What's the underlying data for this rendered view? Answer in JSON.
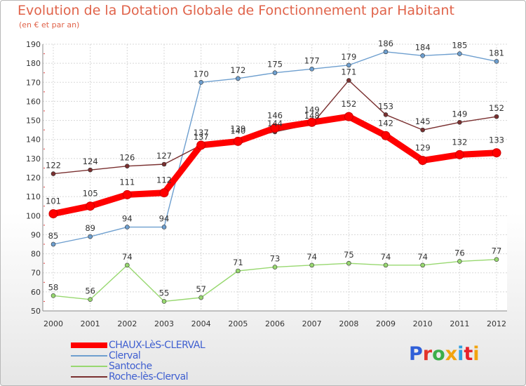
{
  "header": {
    "title": "Evolution de la Dotation Globale de Fonctionnement par Habitant",
    "subtitle": "(en € et par an)"
  },
  "logo": {
    "text": "Proxiti",
    "colors": [
      "#2f5fd8",
      "#e2352b",
      "#3cae49",
      "#f2a40f",
      "#2f9fe0",
      "#e6212b",
      "#f2a40f"
    ]
  },
  "chart_data": {
    "type": "line",
    "x": [
      "2000",
      "2001",
      "2002",
      "2003",
      "2004",
      "2005",
      "2006",
      "2007",
      "2008",
      "2009",
      "2010",
      "2011",
      "2012"
    ],
    "ylim": [
      50,
      190
    ],
    "yticks": [
      50,
      60,
      70,
      80,
      90,
      100,
      110,
      120,
      130,
      140,
      150,
      160,
      170,
      180,
      190
    ],
    "grid": true,
    "legend_position": "bottom-left",
    "series": [
      {
        "name": "CHAUX-LèS-CLERVAL",
        "color": "#ff0000",
        "values": [
          101,
          105,
          111,
          112,
          137,
          139,
          146,
          149,
          152,
          142,
          129,
          132,
          133
        ]
      },
      {
        "name": "Clerval",
        "color": "#6e9fcf",
        "values": [
          85,
          89,
          94,
          94,
          170,
          172,
          175,
          177,
          179,
          186,
          184,
          185,
          181
        ]
      },
      {
        "name": "Santoche",
        "color": "#98d870",
        "values": [
          58,
          56,
          74,
          55,
          57,
          71,
          73,
          74,
          75,
          74,
          74,
          76,
          77
        ]
      },
      {
        "name": "Roche-lès-Clerval",
        "color": "#7a3030",
        "values": [
          122,
          124,
          126,
          127,
          137,
          140,
          144,
          148,
          171,
          153,
          145,
          149,
          152
        ]
      }
    ]
  }
}
